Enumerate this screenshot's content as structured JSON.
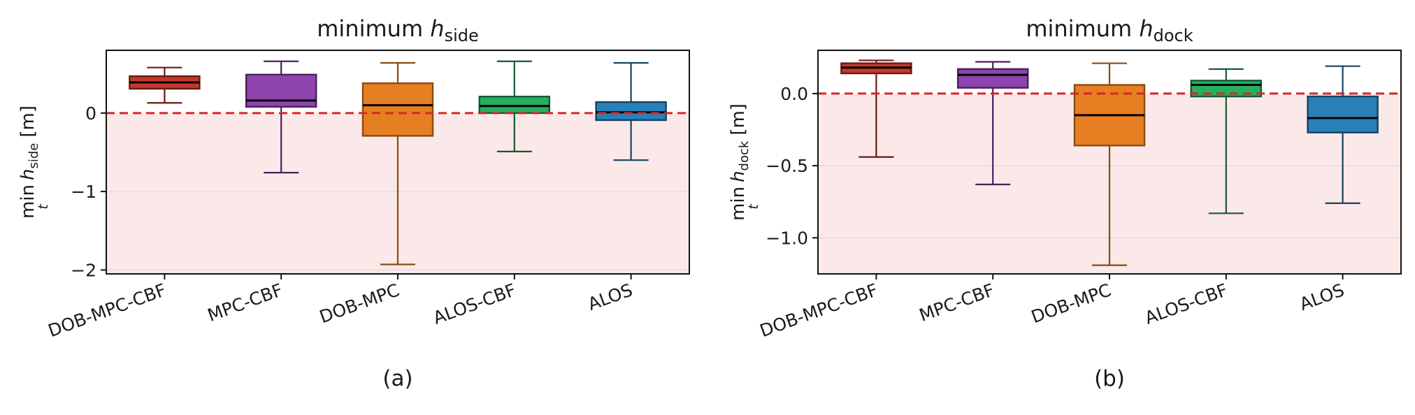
{
  "chart_data": [
    {
      "type": "box",
      "title": {
        "prefix": "minimum ",
        "var": "h",
        "sub": "side"
      },
      "ylabel": {
        "min": "min",
        "t": "t",
        "var": "h",
        "sub": "side",
        "unit": "[m]"
      },
      "caption": "(a)",
      "categories": [
        "DOB-MPC-CBF",
        "MPC-CBF",
        "DOB-MPC",
        "ALOS-CBF",
        "ALOS"
      ],
      "boxes": [
        {
          "whisker_low": 0.13,
          "q1": 0.31,
          "median": 0.39,
          "q3": 0.47,
          "whisker_high": 0.58
        },
        {
          "whisker_low": -0.76,
          "q1": 0.08,
          "median": 0.16,
          "q3": 0.49,
          "whisker_high": 0.66
        },
        {
          "whisker_low": -1.93,
          "q1": -0.29,
          "median": 0.1,
          "q3": 0.38,
          "whisker_high": 0.64
        },
        {
          "whisker_low": -0.49,
          "q1": 0.0,
          "median": 0.09,
          "q3": 0.21,
          "whisker_high": 0.66
        },
        {
          "whisker_low": -0.6,
          "q1": -0.09,
          "median": 0.01,
          "q3": 0.14,
          "whisker_high": 0.64
        }
      ],
      "ylim": [
        -2.05,
        0.8
      ],
      "yticks": [
        0,
        -1,
        -2
      ],
      "ytick_labels": [
        "0",
        "−1",
        "−2"
      ],
      "threshold": 0,
      "unsafe_region": "below threshold"
    },
    {
      "type": "box",
      "title": {
        "prefix": "minimum ",
        "var": "h",
        "sub": "dock"
      },
      "ylabel": {
        "min": "min",
        "t": "t",
        "var": "h",
        "sub": "dock",
        "unit": "[m]"
      },
      "caption": "(b)",
      "categories": [
        "DOB-MPC-CBF",
        "MPC-CBF",
        "DOB-MPC",
        "ALOS-CBF",
        "ALOS"
      ],
      "boxes": [
        {
          "whisker_low": -0.44,
          "q1": 0.14,
          "median": 0.18,
          "q3": 0.21,
          "whisker_high": 0.23
        },
        {
          "whisker_low": -0.63,
          "q1": 0.04,
          "median": 0.13,
          "q3": 0.17,
          "whisker_high": 0.22
        },
        {
          "whisker_low": -1.19,
          "q1": -0.36,
          "median": -0.15,
          "q3": 0.06,
          "whisker_high": 0.21
        },
        {
          "whisker_low": -0.83,
          "q1": -0.02,
          "median": 0.06,
          "q3": 0.09,
          "whisker_high": 0.17
        },
        {
          "whisker_low": -0.76,
          "q1": -0.27,
          "median": -0.17,
          "q3": -0.02,
          "whisker_high": 0.19
        }
      ],
      "ylim": [
        -1.25,
        0.3
      ],
      "yticks": [
        0.0,
        -0.5,
        -1.0
      ],
      "ytick_labels": [
        "0.0",
        "−0.5",
        "−1.0"
      ],
      "threshold": 0,
      "unsafe_region": "below threshold"
    }
  ],
  "series_colors": [
    {
      "fill": "#c0392b",
      "stroke": "#6b1a13"
    },
    {
      "fill": "#8e44ad",
      "stroke": "#4a1f5e"
    },
    {
      "fill": "#e67e22",
      "stroke": "#8a4a0f"
    },
    {
      "fill": "#27ae60",
      "stroke": "#145a32"
    },
    {
      "fill": "#2980b9",
      "stroke": "#154360"
    }
  ],
  "colors": {
    "threshold_line": "#d62728",
    "unsafe_fill": "#fbe8e8",
    "grid": "#dddddd",
    "median": "#000000"
  }
}
